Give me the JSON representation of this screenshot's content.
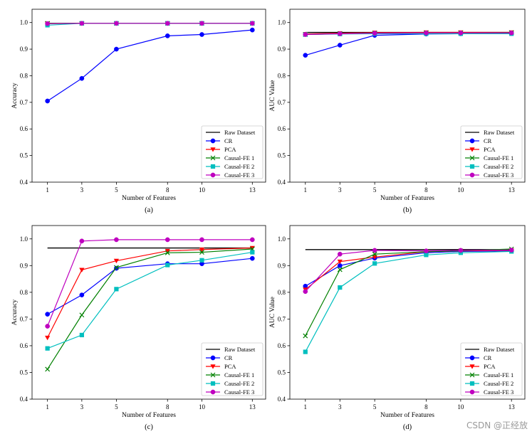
{
  "series_styles": [
    {
      "name": "Raw Dataset",
      "color": "#000000",
      "marker": "none"
    },
    {
      "name": "CR",
      "color": "#0000ff",
      "marker": "circle"
    },
    {
      "name": "PCA",
      "color": "#ff0000",
      "marker": "triangle-down"
    },
    {
      "name": "Causal-FE 1",
      "color": "#008000",
      "marker": "x"
    },
    {
      "name": "Causal-FE 2",
      "color": "#00bfbf",
      "marker": "square"
    },
    {
      "name": "Causal-FE 3",
      "color": "#bf00bf",
      "marker": "circle"
    }
  ],
  "chart_data": [
    {
      "type": "line",
      "caption": "(a)",
      "xlabel": "Number of Features",
      "ylabel": "Accuracy",
      "categories": [
        "1",
        "3",
        "5",
        "8",
        "10",
        "13"
      ],
      "ylim": [
        0.4,
        1.05
      ],
      "yticks": [
        "0.4",
        "0.5",
        "0.6",
        "0.7",
        "0.8",
        "0.9",
        "1.0"
      ],
      "legend_position": "lower-right",
      "series": [
        {
          "name": "Raw Dataset",
          "values": [
            0.997,
            0.997,
            0.997,
            0.997,
            0.997,
            0.997
          ]
        },
        {
          "name": "CR",
          "values": [
            0.705,
            0.79,
            0.9,
            0.95,
            0.955,
            0.972
          ]
        },
        {
          "name": "PCA",
          "values": [
            0.996,
            0.997,
            0.997,
            0.997,
            0.997,
            0.997
          ]
        },
        {
          "name": "Causal-FE 1",
          "values": [
            0.997,
            0.997,
            0.997,
            0.997,
            0.997,
            0.997
          ]
        },
        {
          "name": "Causal-FE 2",
          "values": [
            0.99,
            0.997,
            0.997,
            0.997,
            0.997,
            0.997
          ]
        },
        {
          "name": "Causal-FE 3",
          "values": [
            0.996,
            0.997,
            0.997,
            0.997,
            0.997,
            0.997
          ]
        }
      ]
    },
    {
      "type": "line",
      "caption": "(b)",
      "xlabel": "Number of Features",
      "ylabel": "AUC Value",
      "categories": [
        "1",
        "3",
        "5",
        "8",
        "10",
        "13"
      ],
      "ylim": [
        0.4,
        1.05
      ],
      "yticks": [
        "0.4",
        "0.5",
        "0.6",
        "0.7",
        "0.8",
        "0.9",
        "1.0"
      ],
      "legend_position": "lower-right",
      "series": [
        {
          "name": "Raw Dataset",
          "values": [
            0.963,
            0.963,
            0.963,
            0.963,
            0.963,
            0.963
          ]
        },
        {
          "name": "CR",
          "values": [
            0.877,
            0.915,
            0.952,
            0.957,
            0.958,
            0.96
          ]
        },
        {
          "name": "PCA",
          "values": [
            0.957,
            0.96,
            0.962,
            0.963,
            0.963,
            0.963
          ]
        },
        {
          "name": "Causal-FE 1",
          "values": [
            0.955,
            0.958,
            0.96,
            0.961,
            0.961,
            0.962
          ]
        },
        {
          "name": "Causal-FE 2",
          "values": [
            0.955,
            0.957,
            0.958,
            0.958,
            0.958,
            0.958
          ]
        },
        {
          "name": "Causal-FE 3",
          "values": [
            0.955,
            0.958,
            0.96,
            0.961,
            0.961,
            0.961
          ]
        }
      ]
    },
    {
      "type": "line",
      "caption": "(c)",
      "xlabel": "Number of Features",
      "ylabel": "Accuracy",
      "categories": [
        "1",
        "3",
        "5",
        "8",
        "10",
        "13"
      ],
      "ylim": [
        0.4,
        1.05
      ],
      "yticks": [
        "0.4",
        "0.5",
        "0.6",
        "0.7",
        "0.8",
        "0.9",
        "1.0"
      ],
      "legend_position": "lower-right",
      "series": [
        {
          "name": "Raw Dataset",
          "values": [
            0.966,
            0.966,
            0.966,
            0.966,
            0.966,
            0.966
          ]
        },
        {
          "name": "CR",
          "values": [
            0.718,
            0.79,
            0.89,
            0.907,
            0.907,
            0.927
          ]
        },
        {
          "name": "PCA",
          "values": [
            0.63,
            0.884,
            0.918,
            0.955,
            0.96,
            0.966
          ]
        },
        {
          "name": "Causal-FE 1",
          "values": [
            0.512,
            0.715,
            0.893,
            0.948,
            0.95,
            0.962
          ]
        },
        {
          "name": "Causal-FE 2",
          "values": [
            0.59,
            0.64,
            0.812,
            0.902,
            0.92,
            0.95
          ]
        },
        {
          "name": "Causal-FE 3",
          "values": [
            0.673,
            0.992,
            0.997,
            0.997,
            0.997,
            0.997
          ]
        }
      ]
    },
    {
      "type": "line",
      "caption": "(d)",
      "xlabel": "Number of Features",
      "ylabel": "AUC Value",
      "categories": [
        "1",
        "3",
        "5",
        "8",
        "10",
        "13"
      ],
      "ylim": [
        0.4,
        1.05
      ],
      "yticks": [
        "0.4",
        "0.5",
        "0.6",
        "0.7",
        "0.8",
        "0.9",
        "1.0"
      ],
      "legend_position": "lower-right",
      "series": [
        {
          "name": "Raw Dataset",
          "values": [
            0.96,
            0.96,
            0.96,
            0.96,
            0.96,
            0.96
          ]
        },
        {
          "name": "CR",
          "values": [
            0.823,
            0.9,
            0.928,
            0.948,
            0.953,
            0.955
          ]
        },
        {
          "name": "PCA",
          "values": [
            0.81,
            0.915,
            0.932,
            0.952,
            0.955,
            0.957
          ]
        },
        {
          "name": "Causal-FE 1",
          "values": [
            0.637,
            0.885,
            0.943,
            0.952,
            0.955,
            0.962
          ]
        },
        {
          "name": "Causal-FE 2",
          "values": [
            0.577,
            0.818,
            0.908,
            0.94,
            0.948,
            0.953
          ]
        },
        {
          "name": "Causal-FE 3",
          "values": [
            0.803,
            0.943,
            0.957,
            0.955,
            0.957,
            0.958
          ]
        }
      ]
    }
  ],
  "watermark": "CSDN @正经放"
}
